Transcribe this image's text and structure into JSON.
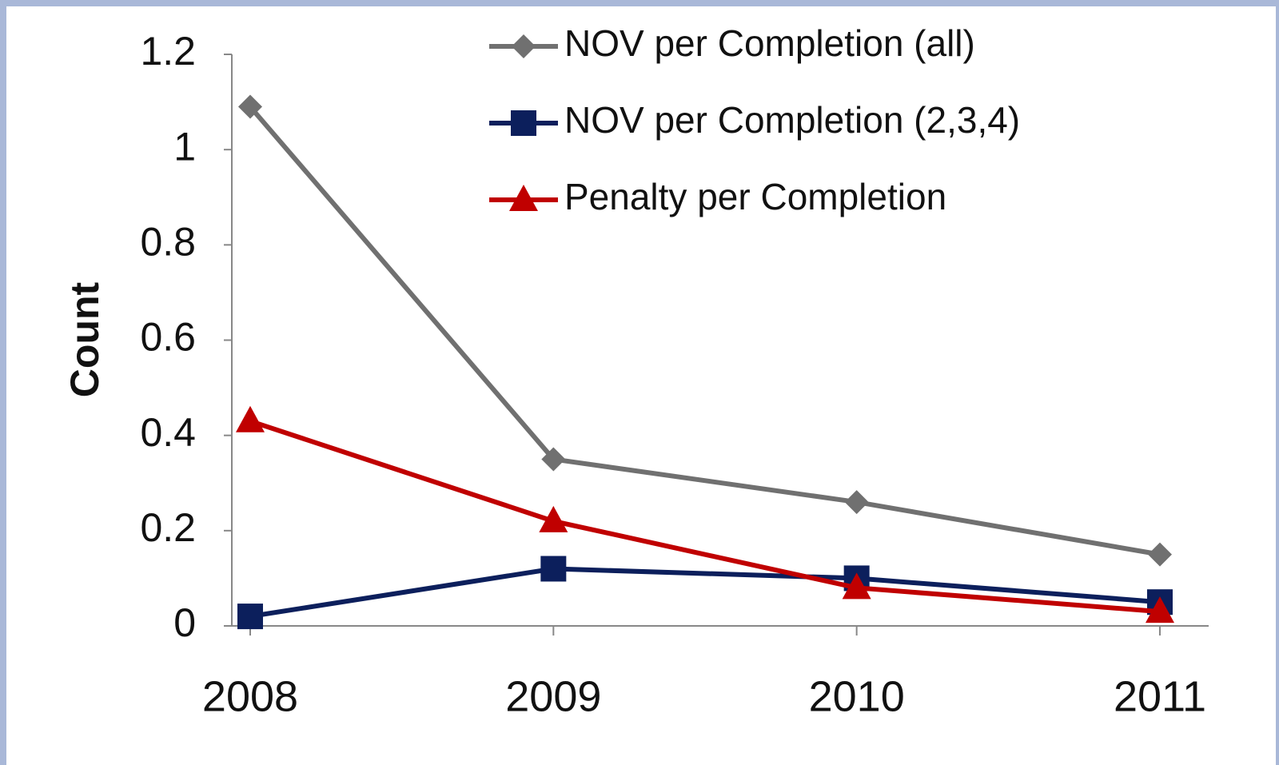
{
  "chart_data": {
    "type": "line",
    "y_label": "Count",
    "categories": [
      "2008",
      "2009",
      "2010",
      "2011"
    ],
    "series": [
      {
        "name": "NOV per Completion (all)",
        "color": "#707070",
        "marker": "diamond",
        "values": [
          1.09,
          0.35,
          0.26,
          0.15
        ]
      },
      {
        "name": "NOV per Completion (2,3,4)",
        "color": "#0c1f5c",
        "marker": "square",
        "values": [
          0.02,
          0.12,
          0.1,
          0.05
        ]
      },
      {
        "name": "Penalty per Completion",
        "color": "#c00000",
        "marker": "triangle",
        "values": [
          0.43,
          0.22,
          0.08,
          0.03
        ]
      }
    ],
    "ylim": [
      0,
      1.2
    ],
    "yticks": [
      0,
      0.2,
      0.4,
      0.6,
      0.8,
      1,
      1.2
    ],
    "grid": false,
    "legend": "top-right"
  }
}
